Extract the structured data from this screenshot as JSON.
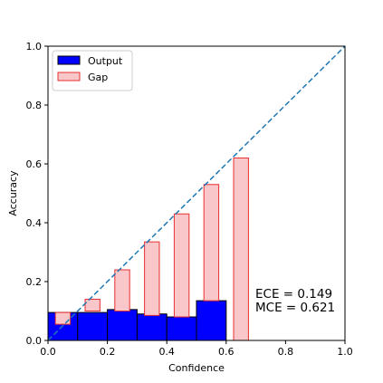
{
  "chart_data": {
    "type": "bar",
    "xlabel": "Confidence",
    "ylabel": "Accuracy",
    "xlim": [
      0,
      1
    ],
    "ylim": [
      0,
      1
    ],
    "xticks": [
      "0.0",
      "0.2",
      "0.4",
      "0.6",
      "0.8",
      "1.0"
    ],
    "yticks": [
      "0.0",
      "0.2",
      "0.4",
      "0.6",
      "0.8",
      "1.0"
    ],
    "grid": false,
    "legend_position": "top-left",
    "bins": {
      "width": 0.1,
      "output_x": [
        0.0,
        0.1,
        0.2,
        0.3,
        0.4,
        0.5
      ],
      "gap_x": [
        0.05,
        0.15,
        0.25,
        0.35,
        0.45,
        0.55,
        0.65
      ]
    },
    "series": [
      {
        "name": "Output",
        "color": "#0000ff",
        "edge": "#000000",
        "values": [
          0.095,
          0.095,
          0.105,
          0.09,
          0.08,
          0.135
        ]
      },
      {
        "name": "Gap",
        "color": "#f9c6c9",
        "edge": "#e83030",
        "bottom": [
          0.055,
          0.1,
          0.1,
          0.085,
          0.08,
          0.135,
          0.0
        ],
        "top": [
          0.095,
          0.14,
          0.24,
          0.335,
          0.43,
          0.53,
          0.62
        ]
      }
    ],
    "diagonal": {
      "color": "#1f77b4",
      "style": "dashed"
    },
    "annotation": {
      "ece": "ECE = 0.149",
      "mce": "MCE = 0.621"
    }
  }
}
